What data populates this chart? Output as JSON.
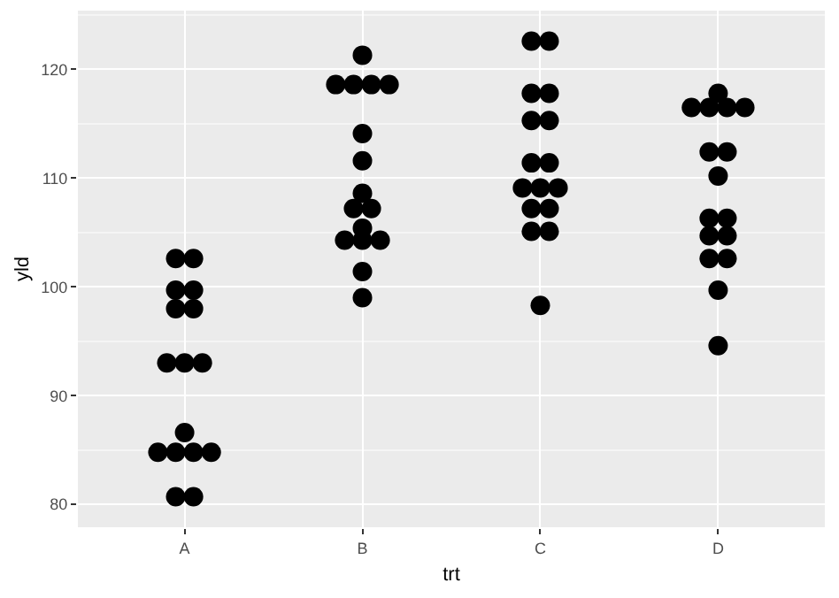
{
  "chart_data": {
    "type": "scatter",
    "xlabel": "trt",
    "ylabel": "yld",
    "categories": [
      "A",
      "B",
      "C",
      "D"
    ],
    "series": [
      {
        "color": "#000000",
        "x": [
          "A",
          "A",
          "A",
          "A",
          "A",
          "A",
          "A",
          "A",
          "A",
          "A",
          "A",
          "A",
          "A",
          "A",
          "A",
          "A",
          "B",
          "B",
          "B",
          "B",
          "B",
          "B",
          "B",
          "B",
          "B",
          "B",
          "B",
          "B",
          "B",
          "B",
          "B",
          "B",
          "C",
          "C",
          "C",
          "C",
          "C",
          "C",
          "C",
          "C",
          "C",
          "C",
          "C",
          "C",
          "C",
          "C",
          "C",
          "C",
          "D",
          "D",
          "D",
          "D",
          "D",
          "D",
          "D",
          "D",
          "D",
          "D",
          "D",
          "D",
          "D",
          "D",
          "D",
          "D"
        ],
        "values": [
          102.6,
          102.6,
          99.7,
          99.7,
          98.0,
          98.0,
          93.0,
          93.0,
          93.0,
          86.6,
          84.8,
          84.8,
          84.8,
          84.8,
          80.7,
          80.7,
          121.3,
          118.6,
          118.6,
          118.6,
          118.6,
          114.1,
          111.6,
          108.6,
          107.2,
          107.2,
          105.4,
          104.3,
          104.3,
          104.3,
          101.4,
          99.0,
          122.6,
          122.6,
          117.8,
          117.8,
          115.3,
          115.3,
          111.4,
          111.4,
          109.1,
          109.1,
          109.1,
          107.2,
          107.2,
          105.1,
          105.1,
          98.3,
          117.8,
          116.5,
          116.5,
          116.5,
          116.5,
          112.4,
          112.4,
          110.2,
          106.3,
          106.3,
          104.7,
          104.7,
          102.6,
          102.6,
          99.7,
          94.6
        ]
      }
    ],
    "ylim": [
      77.9,
      125.4
    ],
    "yticks": [
      80,
      90,
      100,
      110,
      120
    ],
    "grid": true,
    "marker": "circle"
  }
}
